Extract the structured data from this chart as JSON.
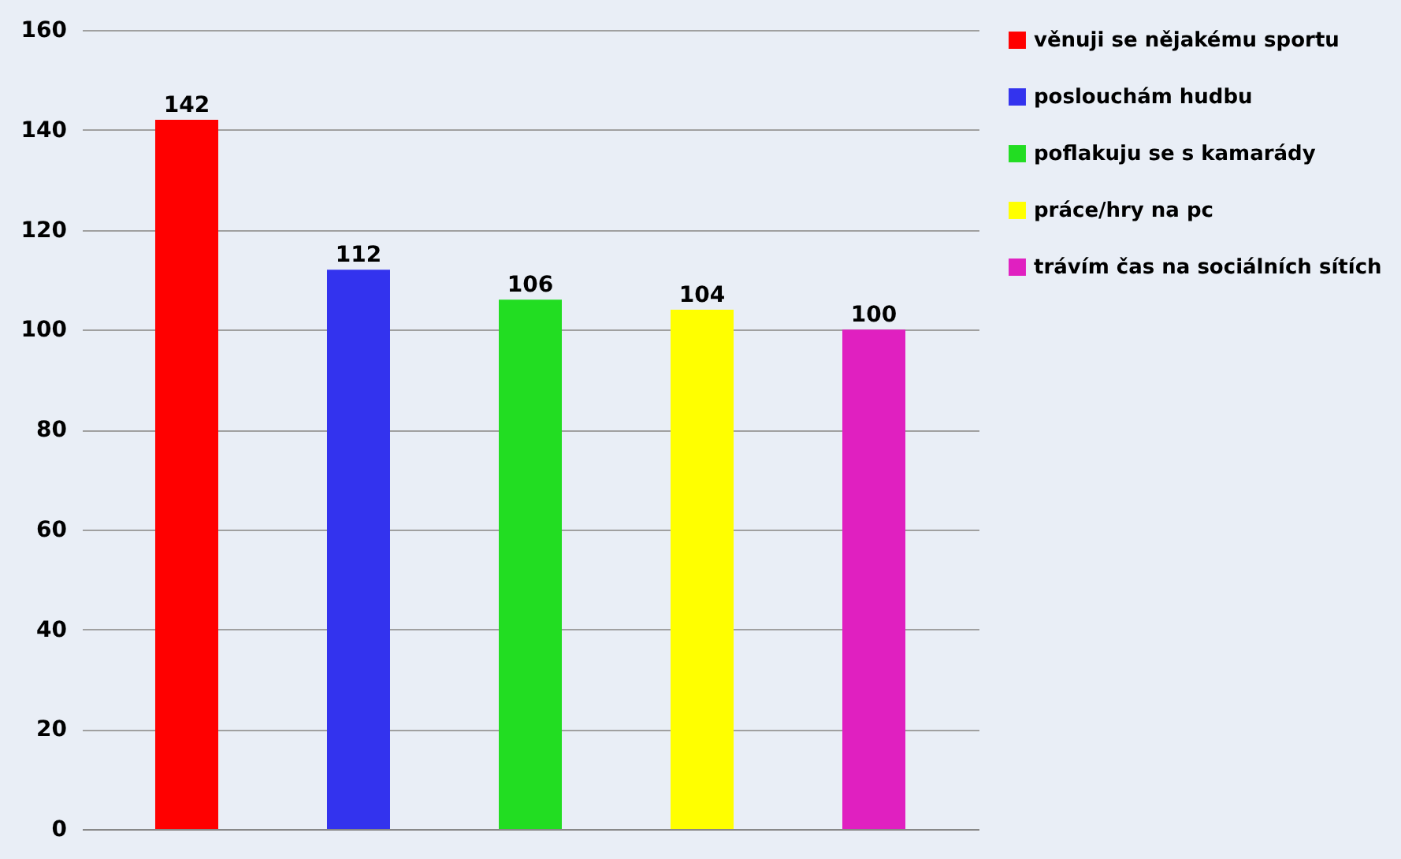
{
  "chart_data": {
    "type": "bar",
    "categories": [
      null,
      null,
      null,
      null,
      null
    ],
    "series": [
      {
        "name": "věnuji se nějakému sportu",
        "color": "#ff0000",
        "values": [
          142,
          null,
          null,
          null,
          null
        ]
      },
      {
        "name": "poslouchám hudbu",
        "color": "#3333ee",
        "values": [
          null,
          112,
          null,
          null,
          null
        ]
      },
      {
        "name": "poflakuju se s kamarády",
        "color": "#22dd22",
        "values": [
          null,
          null,
          106,
          null,
          null
        ]
      },
      {
        "name": "práce/hry na pc",
        "color": "#ffff00",
        "values": [
          null,
          null,
          null,
          104,
          null
        ]
      },
      {
        "name": "trávím čas na sociálních sítích",
        "color": "#e020c0",
        "values": [
          null,
          null,
          null,
          null,
          100
        ]
      }
    ],
    "ylim": [
      0,
      160
    ],
    "yticks": [
      0,
      20,
      40,
      60,
      80,
      100,
      120,
      140,
      160
    ],
    "grid": "y",
    "legend": "right",
    "tick_labels": "y",
    "data_labels": true
  }
}
